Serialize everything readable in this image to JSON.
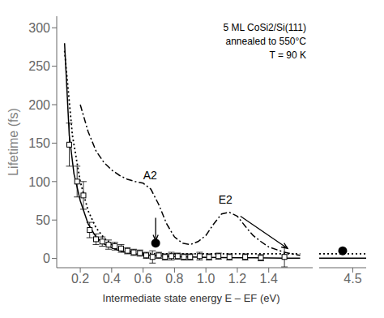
{
  "chart_data": [
    {
      "type": "line",
      "xlabel": "Intermediate state energy  E – EF  (eV)",
      "ylabel": "Lifetime (fs)",
      "xlim": [
        0.05,
        1.68
      ],
      "xticks": [
        0.2,
        0.4,
        0.6,
        0.8,
        {
          "value": 1.0,
          "label": "1.0"
        },
        1.2,
        1.4
      ],
      "ylim": [
        -12,
        315
      ],
      "yticks": [
        0,
        50,
        100,
        150,
        200,
        250,
        300
      ],
      "series": [
        {
          "type": "line",
          "line_style": "solid",
          "color": "#000000",
          "x": [
            0.1,
            0.13,
            0.16,
            0.2,
            0.25,
            0.3,
            0.35,
            0.4,
            0.45,
            0.5,
            0.55,
            0.6,
            0.65,
            0.7,
            0.8,
            0.9,
            1.0,
            1.1,
            1.2,
            1.3,
            1.4,
            1.5,
            1.6
          ],
          "values": [
            280,
            160,
            110,
            75,
            45,
            28,
            19,
            14,
            10,
            7.5,
            6,
            5,
            4,
            3.5,
            2.5,
            2,
            1.5,
            1.2,
            1,
            0.8,
            0.6,
            0.4,
            0.3
          ]
        },
        {
          "type": "line",
          "line_style": "dotted",
          "color": "#000000",
          "x": [
            0.1,
            0.15,
            0.2,
            0.25,
            0.3,
            0.35,
            0.4,
            0.5,
            0.6,
            0.7,
            0.8,
            0.9,
            1.0,
            1.1,
            1.2,
            1.3,
            1.4,
            1.5,
            1.6
          ],
          "values": [
            270,
            160,
            100,
            62,
            40,
            27,
            18,
            10,
            7,
            6,
            6,
            6,
            6,
            6,
            6,
            6,
            6,
            6,
            6
          ]
        },
        {
          "type": "line",
          "line_style": "dashdot",
          "color": "#000000",
          "x": [
            0.2,
            0.25,
            0.3,
            0.35,
            0.4,
            0.45,
            0.5,
            0.55,
            0.6,
            0.65,
            0.7,
            0.75,
            0.8,
            0.85,
            0.9,
            0.95,
            1.0,
            1.05,
            1.1,
            1.15,
            1.2,
            1.25,
            1.3,
            1.35,
            1.4,
            1.5,
            1.6
          ],
          "values": [
            200,
            165,
            140,
            125,
            115,
            108,
            103,
            100,
            98,
            90,
            70,
            45,
            28,
            20,
            18,
            22,
            30,
            45,
            58,
            60,
            55,
            42,
            30,
            22,
            15,
            8,
            4
          ]
        },
        {
          "type": "scatter",
          "marker": "square",
          "color": "#000000",
          "x": [
            0.13,
            0.18,
            0.22,
            0.26,
            0.3,
            0.34,
            0.38,
            0.42,
            0.46,
            0.5,
            0.54,
            0.58,
            0.62,
            0.66,
            0.7,
            0.74,
            0.78,
            0.82,
            0.86,
            0.9,
            0.96,
            1.02,
            1.08,
            1.15,
            1.25,
            1.35,
            1.5
          ],
          "values": [
            148,
            100,
            82,
            37,
            25,
            22,
            18,
            16,
            13,
            10,
            8,
            7,
            4,
            2,
            4,
            2,
            3,
            3,
            2,
            2,
            3,
            2,
            3,
            2,
            2,
            1,
            2
          ],
          "errors": [
            28,
            20,
            18,
            10,
            7,
            6,
            6,
            5,
            5,
            4,
            4,
            4,
            4,
            8,
            4,
            4,
            5,
            4,
            4,
            4,
            5,
            4,
            4,
            4,
            4,
            4,
            13
          ]
        },
        {
          "type": "scatter",
          "marker": "circle",
          "color": "#000000",
          "x": [
            0.68
          ],
          "values": [
            20
          ]
        }
      ],
      "arrows": [
        {
          "x": [
            0.68,
            0.68
          ],
          "y": [
            53,
            23
          ]
        },
        {
          "x": [
            1.22,
            1.52
          ],
          "y": [
            55,
            13
          ]
        }
      ],
      "annotations": [
        {
          "text": "A2",
          "x": 0.6,
          "y": 100
        },
        {
          "text": "E2",
          "x": 1.08,
          "y": 68
        },
        {
          "text": "5 ML CoSi2/Si(111)\nannealed to 550°C\nT = 90 K"
        }
      ]
    },
    {
      "type": "line",
      "xlim": [
        4.0,
        4.7
      ],
      "xticks": [
        4.5
      ],
      "ylim": [
        -12,
        315
      ],
      "tick_labels": "x",
      "series": [
        {
          "type": "scatter",
          "marker": "circle",
          "color": "#000000",
          "x": [
            4.35
          ],
          "values": [
            10
          ]
        },
        {
          "type": "line",
          "line_style": "solid",
          "color": "#000000",
          "x": [
            4.0,
            4.7
          ],
          "values": [
            0.5,
            0.5
          ]
        },
        {
          "type": "line",
          "line_style": "dotted",
          "color": "#000000",
          "x": [
            4.0,
            4.7
          ],
          "values": [
            6,
            6
          ]
        }
      ]
    }
  ]
}
